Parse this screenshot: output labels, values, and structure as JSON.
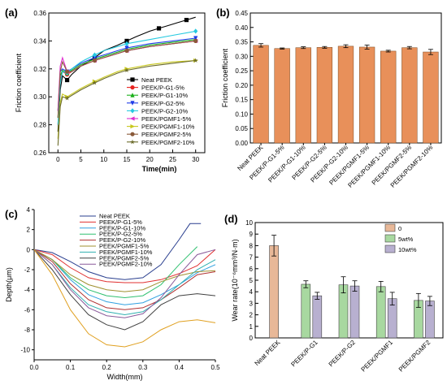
{
  "chart_data": [
    {
      "panel": "(a)",
      "type": "line",
      "xlabel": "Time(min)",
      "ylabel": "Friction coefficient",
      "xlim": [
        -2,
        32
      ],
      "ylim": [
        0.26,
        0.36
      ],
      "xticks": [
        0,
        5,
        10,
        15,
        20,
        25,
        30
      ],
      "yticks": [
        0.26,
        0.28,
        0.3,
        0.32,
        0.34,
        0.36
      ],
      "legend": "bottom-right",
      "series": [
        {
          "name": "Neat PEEK",
          "color": "#000000",
          "marker": "square",
          "x": [
            0,
            0.5,
            1,
            2,
            3,
            5,
            8,
            10,
            13,
            15,
            17,
            20,
            22,
            24,
            26,
            28,
            30
          ],
          "y": [
            0.275,
            0.305,
            0.315,
            0.312,
            0.316,
            0.322,
            0.328,
            0.333,
            0.337,
            0.34,
            0.343,
            0.347,
            0.349,
            0.351,
            0.353,
            0.355,
            0.357
          ]
        },
        {
          "name": "PEEK/P-G1-5%",
          "color": "#e8231f",
          "marker": "circle",
          "x": [
            0,
            0.5,
            1,
            2,
            3,
            5,
            8,
            10,
            13,
            15,
            20,
            25,
            30
          ],
          "y": [
            0.28,
            0.312,
            0.318,
            0.316,
            0.318,
            0.322,
            0.326,
            0.328,
            0.331,
            0.333,
            0.336,
            0.338,
            0.34
          ]
        },
        {
          "name": "PEEK/P-G1-10%",
          "color": "#1ab01a",
          "marker": "triangle-up",
          "x": [
            0,
            0.5,
            1,
            2,
            3,
            5,
            8,
            10,
            13,
            15,
            20,
            25,
            30
          ],
          "y": [
            0.285,
            0.315,
            0.319,
            0.317,
            0.319,
            0.323,
            0.327,
            0.329,
            0.332,
            0.334,
            0.337,
            0.339,
            0.341
          ]
        },
        {
          "name": "PEEK/P-G2-5%",
          "color": "#1f3be8",
          "marker": "triangle-down",
          "x": [
            0,
            0.5,
            1,
            2,
            3,
            5,
            8,
            10,
            13,
            15,
            20,
            25,
            30
          ],
          "y": [
            0.29,
            0.318,
            0.32,
            0.318,
            0.32,
            0.324,
            0.328,
            0.33,
            0.333,
            0.335,
            0.338,
            0.34,
            0.342
          ]
        },
        {
          "name": "PEEK/P-G2-10%",
          "color": "#25c9e0",
          "marker": "diamond",
          "x": [
            0,
            0.5,
            1,
            2,
            3,
            5,
            8,
            10,
            13,
            15,
            20,
            25,
            30
          ],
          "y": [
            0.28,
            0.31,
            0.318,
            0.317,
            0.32,
            0.325,
            0.33,
            0.333,
            0.336,
            0.338,
            0.341,
            0.344,
            0.347
          ]
        },
        {
          "name": "PEEK/PGMF1-5%",
          "color": "#e02fd0",
          "marker": "triangle-left",
          "x": [
            0,
            0.5,
            1,
            2,
            3,
            5,
            8,
            10,
            13,
            15,
            20,
            25,
            30
          ],
          "y": [
            0.29,
            0.322,
            0.328,
            0.318,
            0.318,
            0.322,
            0.326,
            0.328,
            0.331,
            0.333,
            0.336,
            0.338,
            0.34
          ]
        },
        {
          "name": "PEEK/PGMF1-10%",
          "color": "#c8c81e",
          "marker": "triangle-right",
          "x": [
            0,
            0.5,
            1,
            2,
            3,
            5,
            8,
            10,
            13,
            15,
            20,
            25,
            30
          ],
          "y": [
            0.27,
            0.296,
            0.302,
            0.3,
            0.302,
            0.306,
            0.311,
            0.314,
            0.318,
            0.32,
            0.323,
            0.325,
            0.326
          ]
        },
        {
          "name": "PEEK/PGMF2-5%",
          "color": "#8a5a3a",
          "marker": "circle",
          "x": [
            0,
            0.5,
            1,
            2,
            3,
            5,
            8,
            10,
            13,
            15,
            20,
            25,
            30
          ],
          "y": [
            0.285,
            0.318,
            0.325,
            0.318,
            0.318,
            0.322,
            0.326,
            0.328,
            0.331,
            0.333,
            0.336,
            0.338,
            0.34
          ]
        },
        {
          "name": "PEEK/PGMF2-10%",
          "color": "#6b6b2a",
          "marker": "star",
          "x": [
            0,
            0.5,
            1,
            2,
            3,
            5,
            8,
            10,
            13,
            15,
            20,
            25,
            30
          ],
          "y": [
            0.265,
            0.293,
            0.3,
            0.299,
            0.301,
            0.305,
            0.31,
            0.313,
            0.317,
            0.319,
            0.322,
            0.324,
            0.326
          ]
        }
      ]
    },
    {
      "panel": "(b)",
      "type": "bar",
      "ylabel": "Friction coefficient",
      "ylim": [
        0,
        0.45
      ],
      "yticks": [
        0.0,
        0.05,
        0.1,
        0.15,
        0.2,
        0.25,
        0.3,
        0.35,
        0.4,
        0.45
      ],
      "color": "#e8905a",
      "categories": [
        "Neat PEEK",
        "PEEK/P-G1-5%",
        "PEEK/P-G1-10%",
        "PEEK/P-G2-5%",
        "PEEK/P-G2-10%",
        "PEEK/PGMF1-5%",
        "PEEK/PGMF1-10%",
        "PEEK/PGMF2-5%",
        "PEEK/PGMF2-10%"
      ],
      "values": [
        0.338,
        0.327,
        0.33,
        0.331,
        0.335,
        0.332,
        0.318,
        0.33,
        0.315
      ],
      "errors": [
        0.006,
        0.002,
        0.003,
        0.003,
        0.005,
        0.007,
        0.003,
        0.004,
        0.009
      ]
    },
    {
      "panel": "(c)",
      "type": "line",
      "xlabel": "Width(mm)",
      "ylabel": "Depth(μm)",
      "xlim": [
        0,
        0.5
      ],
      "ylim": [
        -11,
        4
      ],
      "xticks": [
        0.0,
        0.1,
        0.2,
        0.3,
        0.4,
        0.5
      ],
      "yticks": [
        -10,
        -8,
        -6,
        -4,
        -2,
        0,
        2,
        4
      ],
      "legend": "top-right",
      "series": [
        {
          "name": "Neat PEEK",
          "color": "#2a3f8f",
          "x": [
            0,
            0.05,
            0.1,
            0.15,
            0.2,
            0.25,
            0.3,
            0.35,
            0.4,
            0.43,
            0.46
          ],
          "y": [
            0,
            -0.3,
            -1.2,
            -2.2,
            -2.8,
            -3.0,
            -2.8,
            -1.5,
            1.0,
            2.6,
            2.6
          ]
        },
        {
          "name": "PEEK/P-G1-5%",
          "color": "#e03030",
          "x": [
            0,
            0.05,
            0.1,
            0.15,
            0.2,
            0.25,
            0.3,
            0.35,
            0.4,
            0.45,
            0.5
          ],
          "y": [
            0,
            -0.5,
            -1.8,
            -2.8,
            -3.2,
            -3.3,
            -3.3,
            -3.0,
            -2.4,
            -1.6,
            0.0
          ]
        },
        {
          "name": "PEEK/P-G1-10%",
          "color": "#30a0e0",
          "x": [
            0,
            0.05,
            0.1,
            0.15,
            0.2,
            0.25,
            0.3,
            0.35,
            0.4,
            0.45,
            0.5
          ],
          "y": [
            0,
            -1.0,
            -3.0,
            -4.5,
            -5.2,
            -5.5,
            -5.3,
            -4.5,
            -3.5,
            -2.3,
            -1.5
          ]
        },
        {
          "name": "PEEK/P-G2-5%",
          "color": "#30c070",
          "x": [
            0,
            0.05,
            0.1,
            0.15,
            0.2,
            0.25,
            0.3,
            0.35,
            0.4,
            0.45
          ],
          "y": [
            0,
            -1.0,
            -2.8,
            -4.0,
            -4.6,
            -4.8,
            -4.6,
            -3.5,
            -1.5,
            0.3
          ]
        },
        {
          "name": "PEEK/P-G2-10%",
          "color": "#b03030",
          "x": [
            0,
            0.05,
            0.1,
            0.15,
            0.2,
            0.25,
            0.3,
            0.35,
            0.4,
            0.45,
            0.5
          ],
          "y": [
            0,
            -1.2,
            -3.4,
            -5.0,
            -5.8,
            -6.0,
            -5.8,
            -5.0,
            -3.8,
            -2.5,
            -2.2
          ]
        },
        {
          "name": "PEEK/PGMF1-5%",
          "color": "#a09030",
          "x": [
            0,
            0.05,
            0.1,
            0.15,
            0.2,
            0.25,
            0.3,
            0.35,
            0.4,
            0.45,
            0.5
          ],
          "y": [
            0,
            -1.0,
            -2.5,
            -3.5,
            -4.0,
            -4.2,
            -4.0,
            -3.2,
            -2.6,
            -2.2,
            -2.1
          ]
        },
        {
          "name": "PEEK/PGMF1-10%",
          "color": "#30b0b0",
          "x": [
            0,
            0.05,
            0.1,
            0.15,
            0.2,
            0.25,
            0.3,
            0.35,
            0.4,
            0.45,
            0.5
          ],
          "y": [
            0,
            -1.5,
            -3.8,
            -5.5,
            -6.2,
            -6.5,
            -6.2,
            -5.0,
            -3.5,
            -2.0,
            -1.0
          ]
        },
        {
          "name": "PEEK/PGMF2-5%",
          "color": "#404040",
          "x": [
            0,
            0.05,
            0.1,
            0.15,
            0.2,
            0.25,
            0.3,
            0.35,
            0.4,
            0.45,
            0.5
          ],
          "y": [
            0,
            -2.0,
            -4.5,
            -6.5,
            -7.5,
            -8.0,
            -7.2,
            -5.5,
            -4.6,
            -4.4,
            -4.6
          ]
        },
        {
          "name": "PEEK/PGMF2-10%",
          "color": "#8a5a9a",
          "x": [
            0,
            0.05,
            0.1,
            0.15,
            0.2,
            0.25,
            0.3,
            0.35,
            0.4,
            0.45,
            0.5
          ],
          "y": [
            0,
            -1.5,
            -4.0,
            -5.8,
            -6.6,
            -6.8,
            -6.4,
            -4.8,
            -2.5,
            -0.5,
            0.0
          ]
        },
        {
          "name": "",
          "color": "#e0a020",
          "x": [
            0,
            0.05,
            0.1,
            0.15,
            0.2,
            0.25,
            0.3,
            0.35,
            0.4,
            0.45,
            0.5
          ],
          "y": [
            0,
            -2.5,
            -6.0,
            -8.4,
            -9.5,
            -9.7,
            -9.2,
            -8.0,
            -7.2,
            -7.0,
            -7.3
          ]
        }
      ]
    },
    {
      "panel": "(d)",
      "type": "bar",
      "ylabel": "Wear rate(10⁻⁶mm³/N·m)",
      "ylim": [
        0,
        10
      ],
      "yticks": [
        0,
        1,
        2,
        3,
        4,
        5,
        6,
        7,
        8,
        9,
        10
      ],
      "legend": "top-right",
      "categories": [
        "Neat PEEK",
        "PEEK/P-G1",
        "PEEK/P-G2",
        "PEEK/PGMF1",
        "PEEK/PGMF2"
      ],
      "series": [
        {
          "name": "0",
          "color": "#e8b898",
          "values": [
            8.0,
            null,
            null,
            null,
            null
          ],
          "errors": [
            0.9,
            null,
            null,
            null,
            null
          ]
        },
        {
          "name": "5wt%",
          "color": "#a8d8a0",
          "values": [
            null,
            4.65,
            4.6,
            4.45,
            3.25
          ],
          "errors": [
            null,
            0.3,
            0.7,
            0.45,
            0.6
          ]
        },
        {
          "name": "10wt%",
          "color": "#b8b0d0",
          "values": [
            null,
            3.65,
            4.5,
            3.4,
            3.2
          ],
          "errors": [
            null,
            0.3,
            0.45,
            0.55,
            0.4
          ]
        }
      ]
    }
  ]
}
